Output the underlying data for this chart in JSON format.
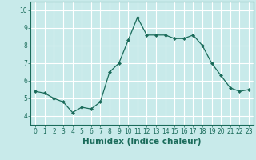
{
  "x": [
    0,
    1,
    2,
    3,
    4,
    5,
    6,
    7,
    8,
    9,
    10,
    11,
    12,
    13,
    14,
    15,
    16,
    17,
    18,
    19,
    20,
    21,
    22,
    23
  ],
  "y": [
    5.4,
    5.3,
    5.0,
    4.8,
    4.2,
    4.5,
    4.4,
    4.8,
    6.5,
    7.0,
    8.3,
    9.6,
    8.6,
    8.6,
    8.6,
    8.4,
    8.4,
    8.6,
    8.0,
    7.0,
    6.3,
    5.6,
    5.4,
    5.5
  ],
  "xlabel": "Humidex (Indice chaleur)",
  "ylim": [
    3.5,
    10.5
  ],
  "xlim": [
    -0.5,
    23.5
  ],
  "yticks": [
    4,
    5,
    6,
    7,
    8,
    9,
    10
  ],
  "xticks": [
    0,
    1,
    2,
    3,
    4,
    5,
    6,
    7,
    8,
    9,
    10,
    11,
    12,
    13,
    14,
    15,
    16,
    17,
    18,
    19,
    20,
    21,
    22,
    23
  ],
  "line_color": "#1a6b5a",
  "marker": "D",
  "marker_size": 2.0,
  "bg_color": "#c8eaea",
  "grid_color": "#ffffff",
  "spine_color": "#1a6b5a",
  "xlabel_fontsize": 7.5,
  "tick_fontsize": 5.5,
  "tick_color": "#1a6b5a"
}
